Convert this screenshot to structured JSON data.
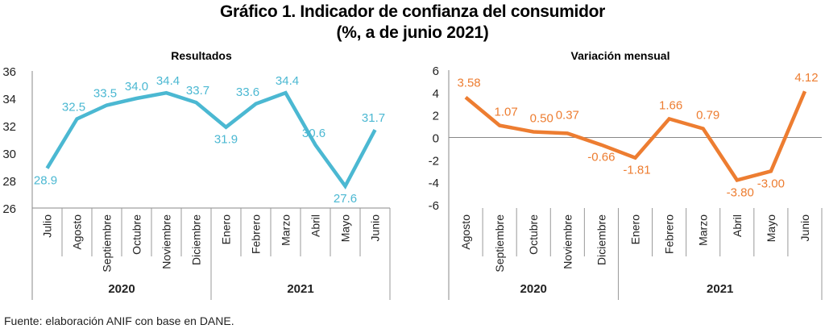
{
  "title_line1": "Gráfico 1. Indicador de confianza del consumidor",
  "title_line2": "(%, a de junio 2021)",
  "source": "Fuente: elaboración ANIF con base en DANE.",
  "colors": {
    "results": "#4BB8D2",
    "variation": "#ED7D31",
    "axis": "#888888",
    "zero_line": "#888888"
  },
  "chart_data": [
    {
      "type": "line",
      "title": "Resultados",
      "categories": [
        "Julio",
        "Agosto",
        "Septiembre",
        "Octubre",
        "Noviembre",
        "Diciembre",
        "Enero",
        "Febrero",
        "Marzo",
        "Abril",
        "Mayo",
        "Junio"
      ],
      "groups": [
        {
          "label": "2020",
          "start": 0,
          "end": 5
        },
        {
          "label": "2021",
          "start": 6,
          "end": 11
        }
      ],
      "series": [
        {
          "name": "Resultados",
          "values": [
            28.9,
            32.5,
            33.5,
            34.0,
            34.4,
            33.7,
            31.9,
            33.6,
            34.4,
            30.6,
            27.6,
            31.7
          ]
        }
      ],
      "data_labels": [
        "28.9",
        "32.5",
        "33.5",
        "34.0",
        "34.4",
        "33.7",
        "31.9",
        "33.6",
        "34.4",
        "30.6",
        "27.6",
        "31.7"
      ],
      "yticks": [
        26,
        28,
        30,
        32,
        34,
        36
      ],
      "ylim": [
        26,
        36
      ],
      "xlabel": "",
      "ylabel": "",
      "grid": false
    },
    {
      "type": "line",
      "title": "Variación mensual",
      "categories": [
        "Agosto",
        "Septiembre",
        "Octubre",
        "Noviembre",
        "Diciembre",
        "Enero",
        "Febrero",
        "Marzo",
        "Abril",
        "Mayo",
        "Junio"
      ],
      "groups": [
        {
          "label": "2020",
          "start": 0,
          "end": 4
        },
        {
          "label": "2021",
          "start": 5,
          "end": 10
        }
      ],
      "series": [
        {
          "name": "Variación mensual",
          "values": [
            3.58,
            1.07,
            0.5,
            0.37,
            -0.66,
            -1.81,
            1.66,
            0.79,
            -3.8,
            -3.0,
            4.12
          ]
        }
      ],
      "data_labels": [
        "3.58",
        "1.07",
        "0.50",
        "0.37",
        "-0.66",
        "-1.81",
        "1.66",
        "0.79",
        "-3.80",
        "-3.00",
        "4.12"
      ],
      "yticks": [
        -6,
        -4,
        -2,
        0,
        2,
        4,
        6
      ],
      "ylim": [
        -6,
        6
      ],
      "xlabel": "",
      "ylabel": "",
      "grid": false
    }
  ]
}
